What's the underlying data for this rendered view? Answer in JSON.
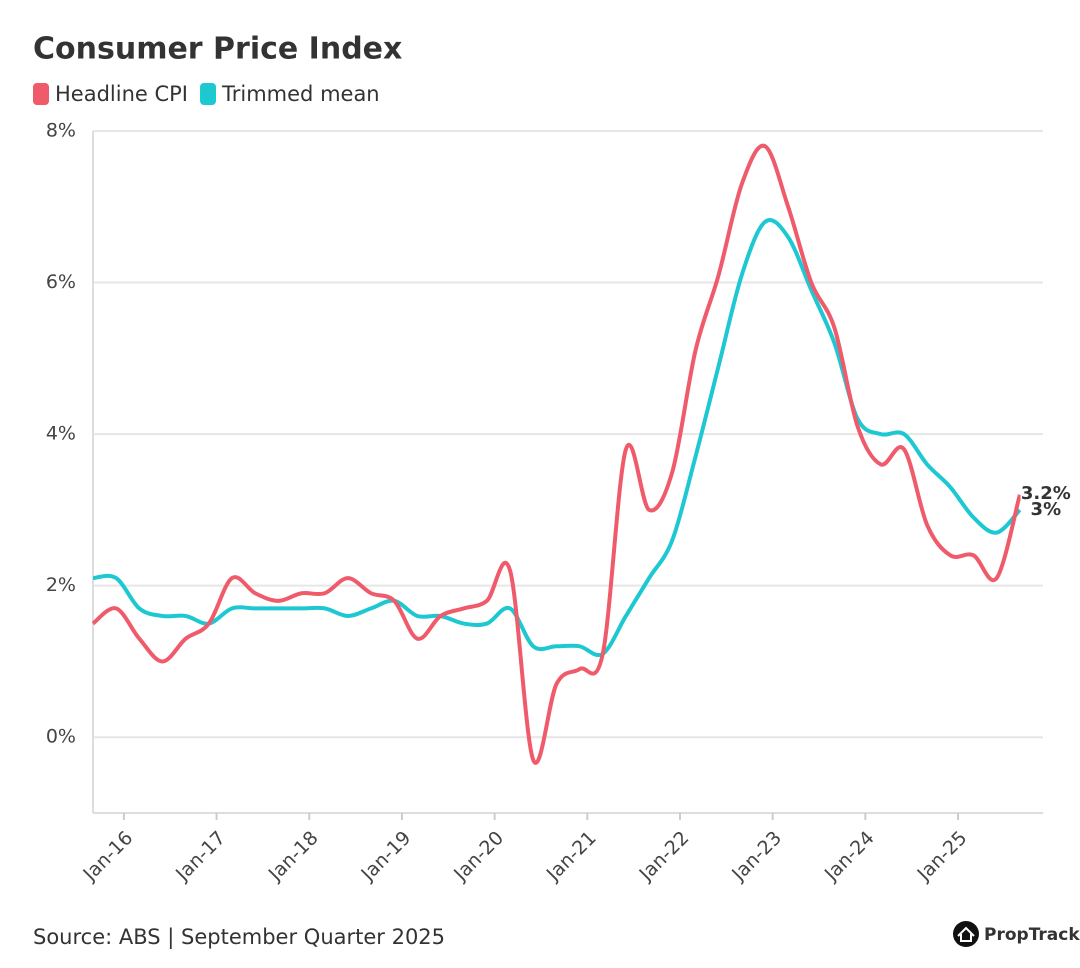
{
  "chart_data": {
    "type": "line",
    "title": "Consumer Price Index",
    "source": "Source: ABS | September Quarter 2025",
    "brand": "PropTrack",
    "x": [
      "Sep-15",
      "Dec-15",
      "Mar-16",
      "Jun-16",
      "Sep-16",
      "Dec-16",
      "Mar-17",
      "Jun-17",
      "Sep-17",
      "Dec-17",
      "Mar-18",
      "Jun-18",
      "Sep-18",
      "Dec-18",
      "Mar-19",
      "Jun-19",
      "Sep-19",
      "Dec-19",
      "Mar-20",
      "Jun-20",
      "Sep-20",
      "Dec-20",
      "Mar-21",
      "Jun-21",
      "Sep-21",
      "Dec-21",
      "Mar-22",
      "Jun-22",
      "Sep-22",
      "Dec-22",
      "Mar-23",
      "Jun-23",
      "Sep-23",
      "Dec-23",
      "Mar-24",
      "Jun-24",
      "Sep-24",
      "Dec-24",
      "Mar-25",
      "Jun-25",
      "Sep-25"
    ],
    "xlim": [
      "Sep-15",
      "Dec-25"
    ],
    "xticks": [
      "Jan-16",
      "Jan-17",
      "Jan-18",
      "Jan-19",
      "Jan-20",
      "Jan-21",
      "Jan-22",
      "Jan-23",
      "Jan-24",
      "Jan-25"
    ],
    "ylim": [
      -1,
      8
    ],
    "yticks": [
      {
        "value": 0,
        "label": "0%"
      },
      {
        "value": 2,
        "label": "2%"
      },
      {
        "value": 4,
        "label": "4%"
      },
      {
        "value": 6,
        "label": "6%"
      },
      {
        "value": 8,
        "label": "8%"
      }
    ],
    "grid": true,
    "legend": "top-left",
    "series": [
      {
        "name": "Headline CPI",
        "color": "#ef5b6b",
        "values": [
          1.5,
          1.7,
          1.3,
          1.0,
          1.3,
          1.5,
          2.1,
          1.9,
          1.8,
          1.9,
          1.9,
          2.1,
          1.9,
          1.8,
          1.3,
          1.6,
          1.7,
          1.8,
          2.2,
          -0.3,
          0.7,
          0.9,
          1.1,
          3.8,
          3.0,
          3.5,
          5.1,
          6.1,
          7.3,
          7.8,
          7.0,
          6.0,
          5.4,
          4.1,
          3.6,
          3.8,
          2.8,
          2.4,
          2.4,
          2.1,
          3.2
        ],
        "value_labels": [
          null,
          null,
          null,
          null,
          null,
          null,
          null,
          null,
          null,
          null,
          null,
          null,
          null,
          null,
          null,
          null,
          null,
          null,
          null,
          null,
          null,
          null,
          null,
          null,
          null,
          null,
          null,
          null,
          null,
          null,
          null,
          null,
          null,
          null,
          null,
          null,
          null,
          null,
          null,
          null,
          "3.2%"
        ]
      },
      {
        "name": "Trimmed mean",
        "color": "#1ec8d2",
        "values": [
          2.1,
          2.1,
          1.7,
          1.6,
          1.6,
          1.5,
          1.7,
          1.7,
          1.7,
          1.7,
          1.7,
          1.6,
          1.7,
          1.8,
          1.6,
          1.6,
          1.5,
          1.5,
          1.7,
          1.2,
          1.2,
          1.2,
          1.1,
          1.6,
          2.1,
          2.6,
          3.7,
          4.9,
          6.1,
          6.8,
          6.6,
          5.9,
          5.2,
          4.2,
          4.0,
          4.0,
          3.6,
          3.3,
          2.9,
          2.7,
          3.0
        ],
        "value_labels": [
          null,
          null,
          null,
          null,
          null,
          null,
          null,
          null,
          null,
          null,
          null,
          null,
          null,
          null,
          null,
          null,
          null,
          null,
          null,
          null,
          null,
          null,
          null,
          null,
          null,
          null,
          null,
          null,
          null,
          null,
          null,
          null,
          null,
          null,
          null,
          null,
          null,
          null,
          null,
          null,
          "3%"
        ]
      }
    ]
  }
}
